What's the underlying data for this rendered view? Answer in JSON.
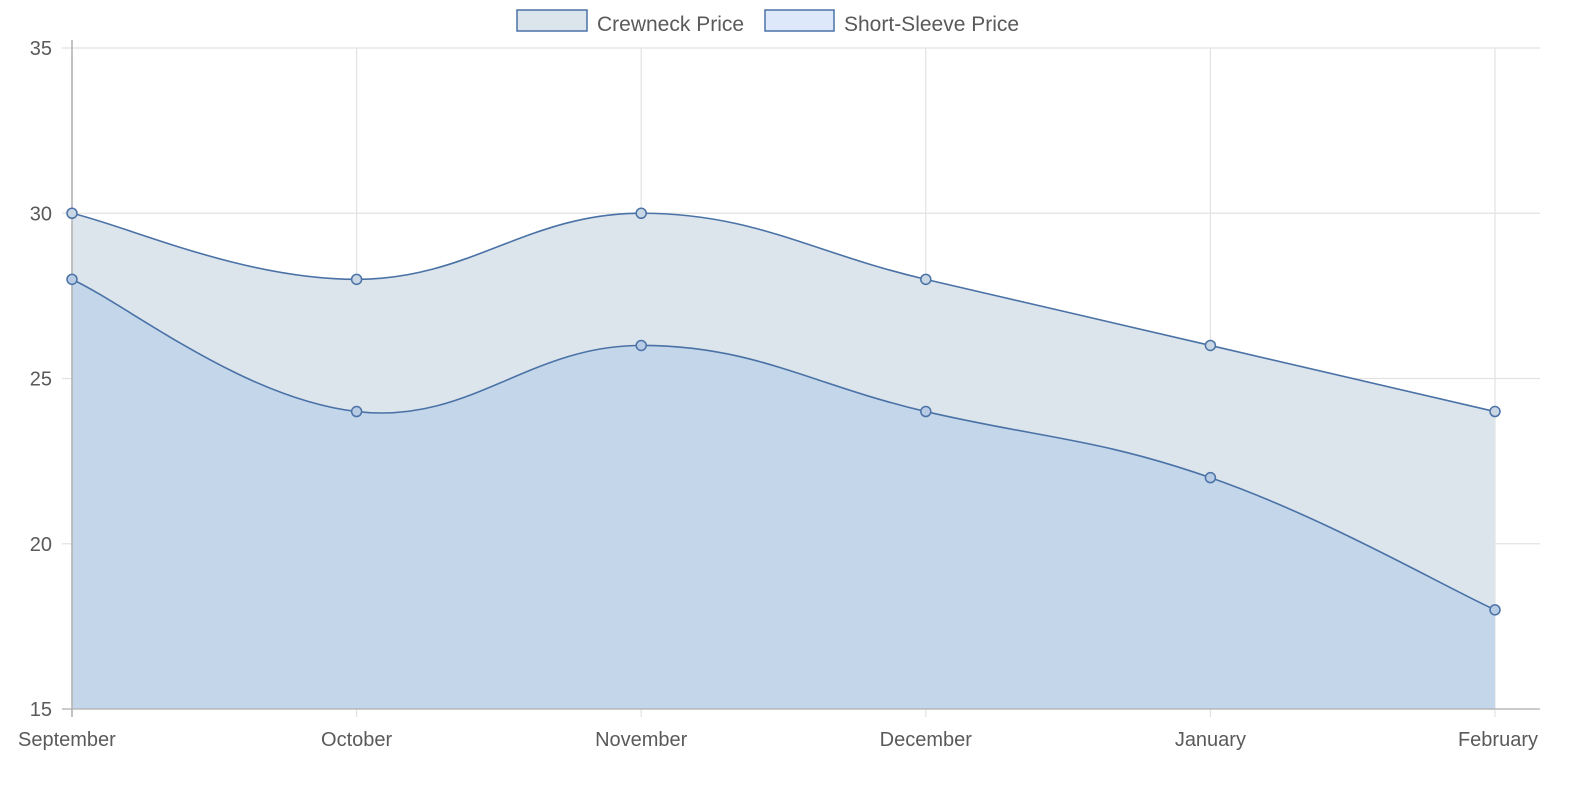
{
  "chart_data": {
    "type": "area",
    "categories": [
      "September",
      "October",
      "November",
      "December",
      "January",
      "February"
    ],
    "ylim": [
      15,
      35
    ],
    "yticks": [
      15,
      20,
      25,
      30,
      35
    ],
    "grid": true,
    "legend_position": "top-center",
    "curve": "smooth",
    "series": [
      {
        "name": "Crewneck Price",
        "values": [
          30,
          28,
          30,
          28,
          26,
          24
        ],
        "stroke": "#4a72a6",
        "fill": "#dce4ec",
        "marker_fill": "#c9d6e4"
      },
      {
        "name": "Short-Sleeve Price",
        "values": [
          28,
          24,
          26,
          24,
          22,
          18
        ],
        "stroke": "#4a72a6",
        "fill": "#c0d3ea",
        "marker_fill": "#b8cbe4"
      }
    ],
    "xlabel": "",
    "ylabel": ""
  },
  "colors": {
    "grid": "#e2e2e2",
    "axis": "#b0b0b0",
    "text": "#5a5a5a",
    "legend_swatch_1": "#dce4ec",
    "legend_swatch_2": "#dde9fa",
    "legend_border": "#4a72a6"
  }
}
